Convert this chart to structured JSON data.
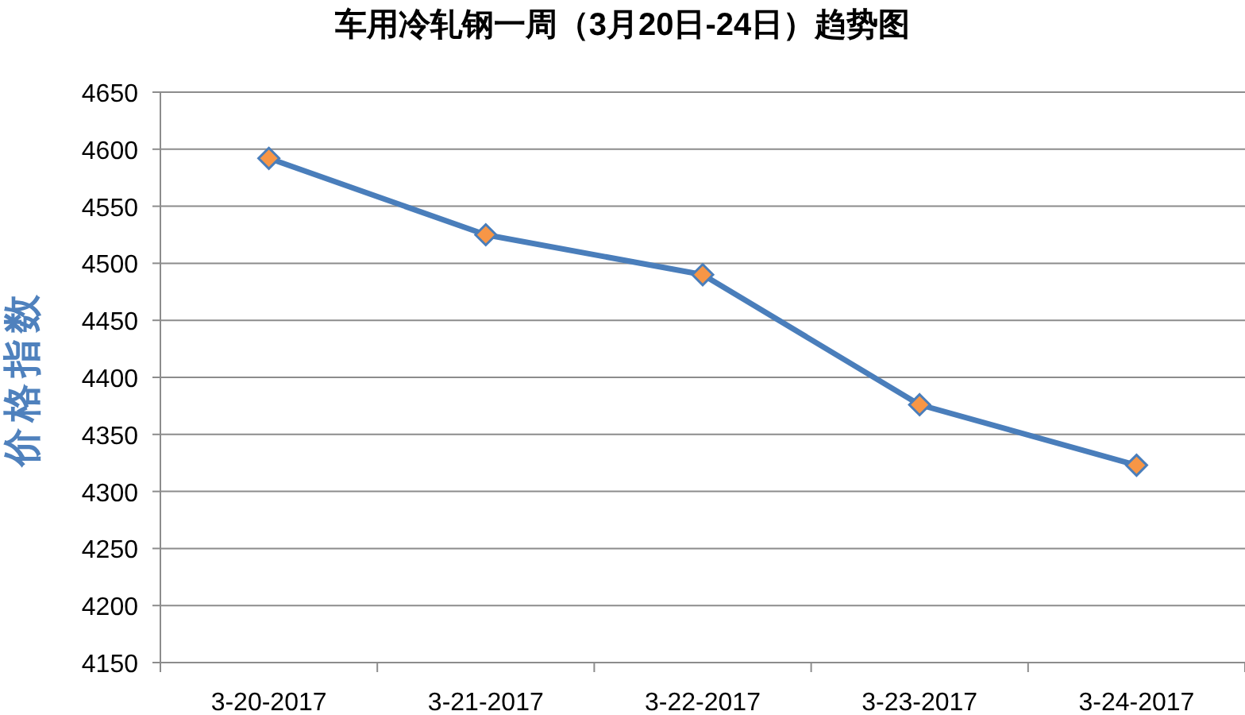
{
  "chart_data": {
    "type": "line",
    "title": "车用冷轧钢一周（3月20日-24日）趋势图",
    "ylabel": "价格指数",
    "categories": [
      "3-20-2017",
      "3-21-2017",
      "3-22-2017",
      "3-23-2017",
      "3-24-2017"
    ],
    "series": [
      {
        "color": "#4a7ebb",
        "values": [
          4592,
          4525,
          4490,
          4376,
          4323
        ]
      }
    ],
    "ylim": [
      4150,
      4650
    ],
    "yticks": [
      4150,
      4200,
      4250,
      4300,
      4350,
      4400,
      4450,
      4500,
      4550,
      4600,
      4650
    ],
    "grid": "y",
    "marker": "diamond",
    "line_style": "solid"
  }
}
